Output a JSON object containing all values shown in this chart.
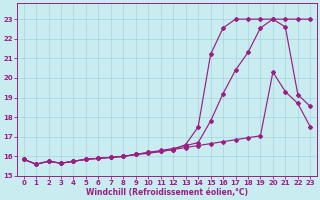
{
  "xlabel": "Windchill (Refroidissement éolien,°C)",
  "bg_color": "#c8ecf0",
  "line_color": "#9b1f82",
  "grid_color": "#a8d4dc",
  "xlim": [
    -0.5,
    23.5
  ],
  "ylim": [
    15.3,
    23.8
  ],
  "yticks": [
    15,
    16,
    17,
    18,
    19,
    20,
    21,
    22,
    23
  ],
  "xticks": [
    0,
    1,
    2,
    3,
    4,
    5,
    6,
    7,
    8,
    9,
    10,
    11,
    12,
    13,
    14,
    15,
    16,
    17,
    18,
    19,
    20,
    21,
    22,
    23
  ],
  "line1_x": [
    0,
    1,
    2,
    3,
    4,
    5,
    6,
    7,
    8,
    9,
    10,
    11,
    12,
    13,
    14,
    15,
    16,
    17,
    18,
    19,
    20,
    21,
    22,
    23
  ],
  "line1_y": [
    15.85,
    15.6,
    15.75,
    15.65,
    15.75,
    15.85,
    15.9,
    15.95,
    16.0,
    16.1,
    16.15,
    16.25,
    16.35,
    16.6,
    17.5,
    21.2,
    22.55,
    23.0,
    23.0,
    23.0,
    23.0,
    23.0,
    23.0,
    23.0
  ],
  "line2_x": [
    0,
    1,
    2,
    3,
    4,
    5,
    6,
    7,
    8,
    9,
    10,
    11,
    12,
    13,
    14,
    15,
    16,
    17,
    18,
    19,
    20,
    21,
    22,
    23
  ],
  "line2_y": [
    15.85,
    15.6,
    15.75,
    15.65,
    15.75,
    15.85,
    15.9,
    15.95,
    16.0,
    16.1,
    16.2,
    16.3,
    16.4,
    16.55,
    16.7,
    17.8,
    19.2,
    20.4,
    21.3,
    22.55,
    23.0,
    22.6,
    19.15,
    18.55
  ],
  "line3_x": [
    0,
    1,
    2,
    3,
    4,
    5,
    6,
    7,
    8,
    9,
    10,
    11,
    12,
    13,
    14,
    15,
    16,
    17,
    18,
    19,
    20,
    21,
    22,
    23
  ],
  "line3_y": [
    15.85,
    15.6,
    15.75,
    15.65,
    15.75,
    15.85,
    15.9,
    15.95,
    16.0,
    16.1,
    16.2,
    16.25,
    16.35,
    16.45,
    16.55,
    16.65,
    16.75,
    16.85,
    16.95,
    17.05,
    20.3,
    19.3,
    18.7,
    17.5
  ]
}
